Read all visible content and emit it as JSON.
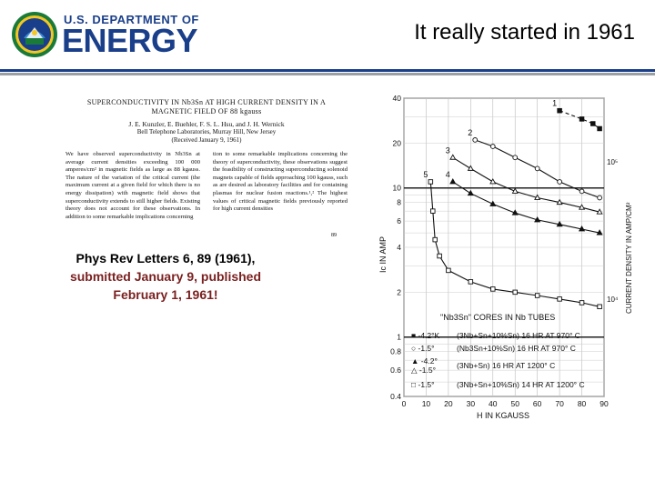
{
  "header": {
    "logo_top_text": "U.S. DEPARTMENT OF",
    "logo_big_text": "ENERGY",
    "slide_title": "It really started in 1961",
    "brand_color": "#1a3f8a"
  },
  "paper": {
    "title_line1": "SUPERCONDUCTIVITY IN Nb3Sn AT HIGH CURRENT DENSITY IN A",
    "title_line2": "MAGNETIC FIELD OF 88 kgauss",
    "authors": "J. E. Kunzler, E. Buehler, F. S. L. Hsu, and J. H. Wernick",
    "affiliation": "Bell Telephone Laboratories, Murray Hill, New Jersey",
    "received": "(Received January 9, 1961)",
    "col1": "We have observed superconductivity in Nb3Sn at average current densities exceeding 100 000 amperes/cm² in magnetic fields as large as 88 kgauss. The nature of the variation of the critical current (the maximum current at a given field for which there is no energy dissipation) with magnetic field shows that superconductivity extends to still higher fields. Existing theory does not account for these observations. In addition to some remarkable implications concerning",
    "col2": "tion to some remarkable implications concerning the theory of superconductivity, these observations suggest the feasibility of constructing superconducting solenoid magnets capable of fields approaching 100 kgauss, such as are desired as laboratory facilities and for containing plasmas for nuclear fusion reactions.¹,² The highest values of critical magnetic fields previously reported for high current densities",
    "page_number": "89"
  },
  "citation": {
    "line1": "Phys Rev Letters 6, 89 (1961),",
    "line2": "submitted January 9, published",
    "line3": "February 1, 1961!"
  },
  "figure": {
    "y_label": "Ic IN AMP",
    "y2_label": "CURRENT DENSITY IN AMP/CM²",
    "x_label": "H IN KGAUSS",
    "y_ticks": [
      "40",
      "20",
      "10",
      "8",
      "6",
      "4",
      "2",
      "1",
      "0.8",
      "0.6",
      "0.4"
    ],
    "x_ticks": [
      "0",
      "10",
      "20",
      "30",
      "40",
      "50",
      "60",
      "70",
      "80",
      "90"
    ],
    "y2_ticks": [
      "10⁵",
      "10⁴"
    ],
    "legend_title": "\"Nb3Sn\" CORES IN Nb TUBES",
    "legend_rows": [
      {
        "marker": "■",
        "temp": "-4.2°K",
        "recipe": "(3Nb+Sn+10%Sn) 16 HR AT 970° C"
      },
      {
        "marker": "○",
        "temp": "-1.5°",
        "recipe": "(Nb3Sn+10%Sn) 16 HR AT 970° C"
      },
      {
        "marker": "▲",
        "temp": "-4.2°",
        "recipe": ""
      },
      {
        "marker": "△",
        "temp": "-1.5°",
        "recipe": "(3Nb+Sn) 16 HR AT 1200° C"
      },
      {
        "marker": "□",
        "temp": "-1.5°",
        "recipe": "(3Nb+Sn+10%Sn) 14 HR AT 1200° C"
      }
    ],
    "curve_labels": [
      "1",
      "2",
      "3",
      "4",
      "5"
    ]
  },
  "chart_data": {
    "type": "scatter",
    "title": "",
    "xlabel": "H IN KGAUSS",
    "ylabel": "Ic IN AMP",
    "xlim": [
      0,
      90
    ],
    "ylim": [
      0.4,
      40
    ],
    "y_scale": "log",
    "grid": true,
    "series": [
      {
        "name": "1",
        "x": [
          70,
          80,
          85,
          88
        ],
        "y": [
          33,
          29,
          27,
          25
        ]
      },
      {
        "name": "2",
        "x": [
          32,
          40,
          50,
          60,
          70,
          80,
          88
        ],
        "y": [
          21,
          19,
          16,
          13.5,
          11,
          9.5,
          8.6
        ]
      },
      {
        "name": "3",
        "x": [
          22,
          30,
          40,
          50,
          60,
          70,
          80,
          88
        ],
        "y": [
          16,
          13.5,
          11,
          9.5,
          8.6,
          8,
          7.4,
          6.9
        ]
      },
      {
        "name": "4",
        "x": [
          22,
          30,
          40,
          50,
          60,
          70,
          80,
          88
        ],
        "y": [
          11,
          9.2,
          7.8,
          6.8,
          6.1,
          5.7,
          5.3,
          5
        ]
      },
      {
        "name": "5",
        "x": [
          12,
          13,
          14,
          16,
          20,
          30,
          40,
          50,
          60,
          70,
          80,
          88
        ],
        "y": [
          11,
          7,
          4.5,
          3.5,
          2.8,
          2.35,
          2.1,
          2.0,
          1.9,
          1.8,
          1.7,
          1.6
        ]
      }
    ]
  }
}
